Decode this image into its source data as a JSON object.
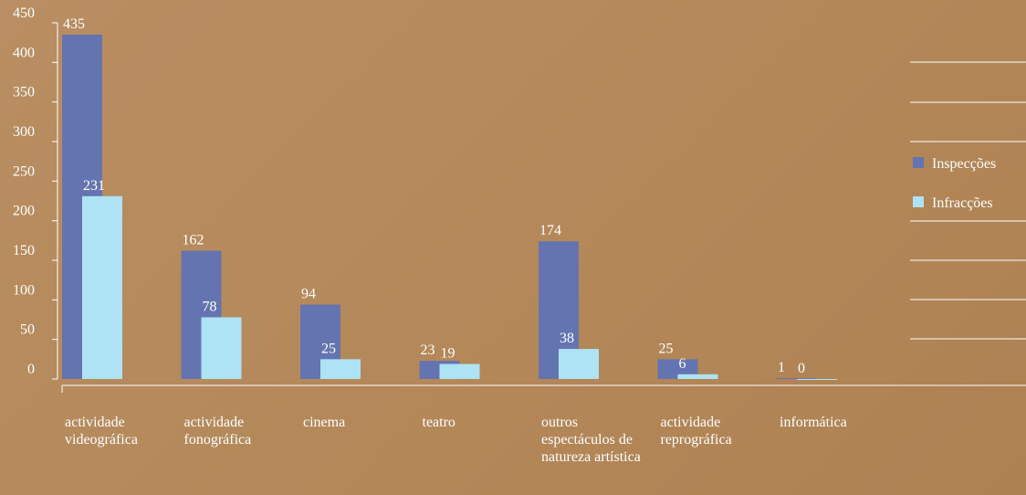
{
  "chart_data": {
    "type": "bar",
    "categories": [
      "actividade videográfica",
      "actividade fonográfica",
      "cinema",
      "teatro",
      "outros espectáculos de natureza artística",
      "actividade reprográfica",
      "informática"
    ],
    "series": [
      {
        "name": "Inspecções",
        "color": "#6474b0",
        "values": [
          435,
          162,
          94,
          23,
          174,
          25,
          1
        ]
      },
      {
        "name": "Infracções",
        "color": "#ade3f5",
        "values": [
          231,
          78,
          25,
          19,
          38,
          6,
          0
        ]
      }
    ],
    "ylim": [
      0,
      450
    ],
    "yticks": [
      0,
      50,
      100,
      150,
      200,
      250,
      300,
      350,
      400,
      450
    ],
    "legend": "right"
  }
}
